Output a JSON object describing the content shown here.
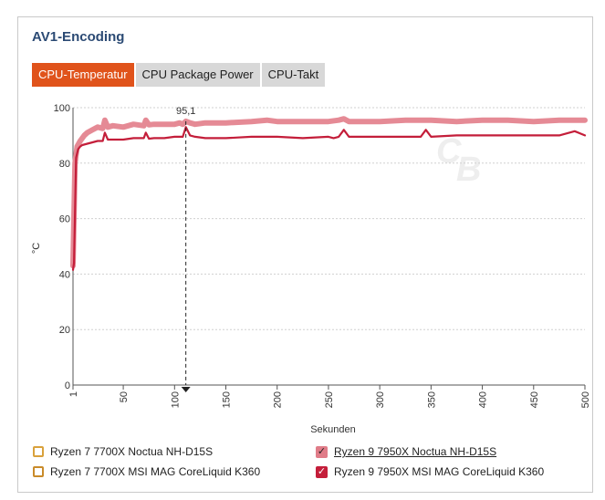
{
  "title": "AV1-Encoding",
  "tabs": [
    {
      "label": "CPU-Temperatur",
      "active": true
    },
    {
      "label": "CPU Package Power",
      "active": false
    },
    {
      "label": "CPU-Takt",
      "active": false
    }
  ],
  "legend": [
    {
      "label": "Ryzen 7 7700X Noctua NH-D15S",
      "checked": false,
      "color": "#d9a13c"
    },
    {
      "label": "Ryzen 7 7700X MSI MAG CoreLiquid K360",
      "checked": false,
      "color": "#c98b2a"
    },
    {
      "label": "Ryzen 9 7950X Noctua NH-D15S",
      "checked": true,
      "color": "#e07c88"
    },
    {
      "label": "Ryzen 9 7950X MSI MAG CoreLiquid K360",
      "checked": true,
      "color": "#c41e3a"
    }
  ],
  "chart_data": {
    "type": "line",
    "xlabel": "Sekunden",
    "ylabel": "°C",
    "xlim": [
      1,
      500
    ],
    "ylim": [
      0,
      100
    ],
    "yticks": [
      0,
      20,
      40,
      60,
      80,
      100
    ],
    "xticks": [
      "1",
      "50",
      "100",
      "150",
      "200",
      "250",
      "300",
      "350",
      "400",
      "450",
      "500"
    ],
    "grid": true,
    "marker": {
      "x": 111,
      "value": "95,1"
    },
    "series": [
      {
        "name": "Ryzen 9 7950X Noctua NH-D15S",
        "color": "#e58a95",
        "x": [
          1,
          3,
          5,
          8,
          12,
          15,
          20,
          25,
          30,
          32,
          35,
          40,
          50,
          60,
          70,
          72,
          75,
          80,
          90,
          100,
          105,
          108,
          111,
          115,
          120,
          130,
          150,
          175,
          190,
          200,
          225,
          250,
          260,
          265,
          270,
          300,
          325,
          350,
          375,
          400,
          425,
          450,
          475,
          490,
          500
        ],
        "y": [
          43,
          80,
          86,
          88,
          90,
          91,
          92,
          93,
          92.5,
          95.5,
          93,
          93.5,
          93,
          94,
          93.5,
          95.5,
          93.8,
          94,
          94,
          94,
          94.5,
          94,
          95.1,
          94.5,
          94,
          94.5,
          94.5,
          95,
          95.5,
          95,
          95,
          95,
          95.5,
          96,
          95,
          95,
          95.5,
          95.5,
          95,
          95.5,
          95.5,
          95,
          95.5,
          95.5,
          95.5
        ]
      },
      {
        "name": "Ryzen 9 7950X MSI MAG CoreLiquid K360",
        "color": "#c41e3a",
        "x": [
          1,
          2,
          4,
          6,
          8,
          10,
          15,
          20,
          25,
          30,
          32,
          35,
          40,
          50,
          60,
          70,
          72,
          75,
          80,
          90,
          100,
          105,
          108,
          111,
          115,
          120,
          130,
          150,
          175,
          200,
          225,
          250,
          255,
          260,
          265,
          270,
          300,
          325,
          340,
          345,
          350,
          375,
          400,
          425,
          450,
          475,
          490,
          500
        ],
        "y": [
          41.5,
          44,
          82,
          85,
          86,
          86.5,
          87,
          87.5,
          88,
          88,
          91,
          88.5,
          88.5,
          88.5,
          89,
          89,
          91,
          88.8,
          89,
          89,
          89.5,
          89.5,
          89.5,
          93,
          90,
          89.5,
          89,
          89,
          89.5,
          89.5,
          89,
          89.5,
          89,
          89.5,
          92,
          89.5,
          89.5,
          89.5,
          89.5,
          92,
          89.5,
          90,
          90,
          90,
          90,
          90,
          91.5,
          90
        ]
      }
    ]
  }
}
